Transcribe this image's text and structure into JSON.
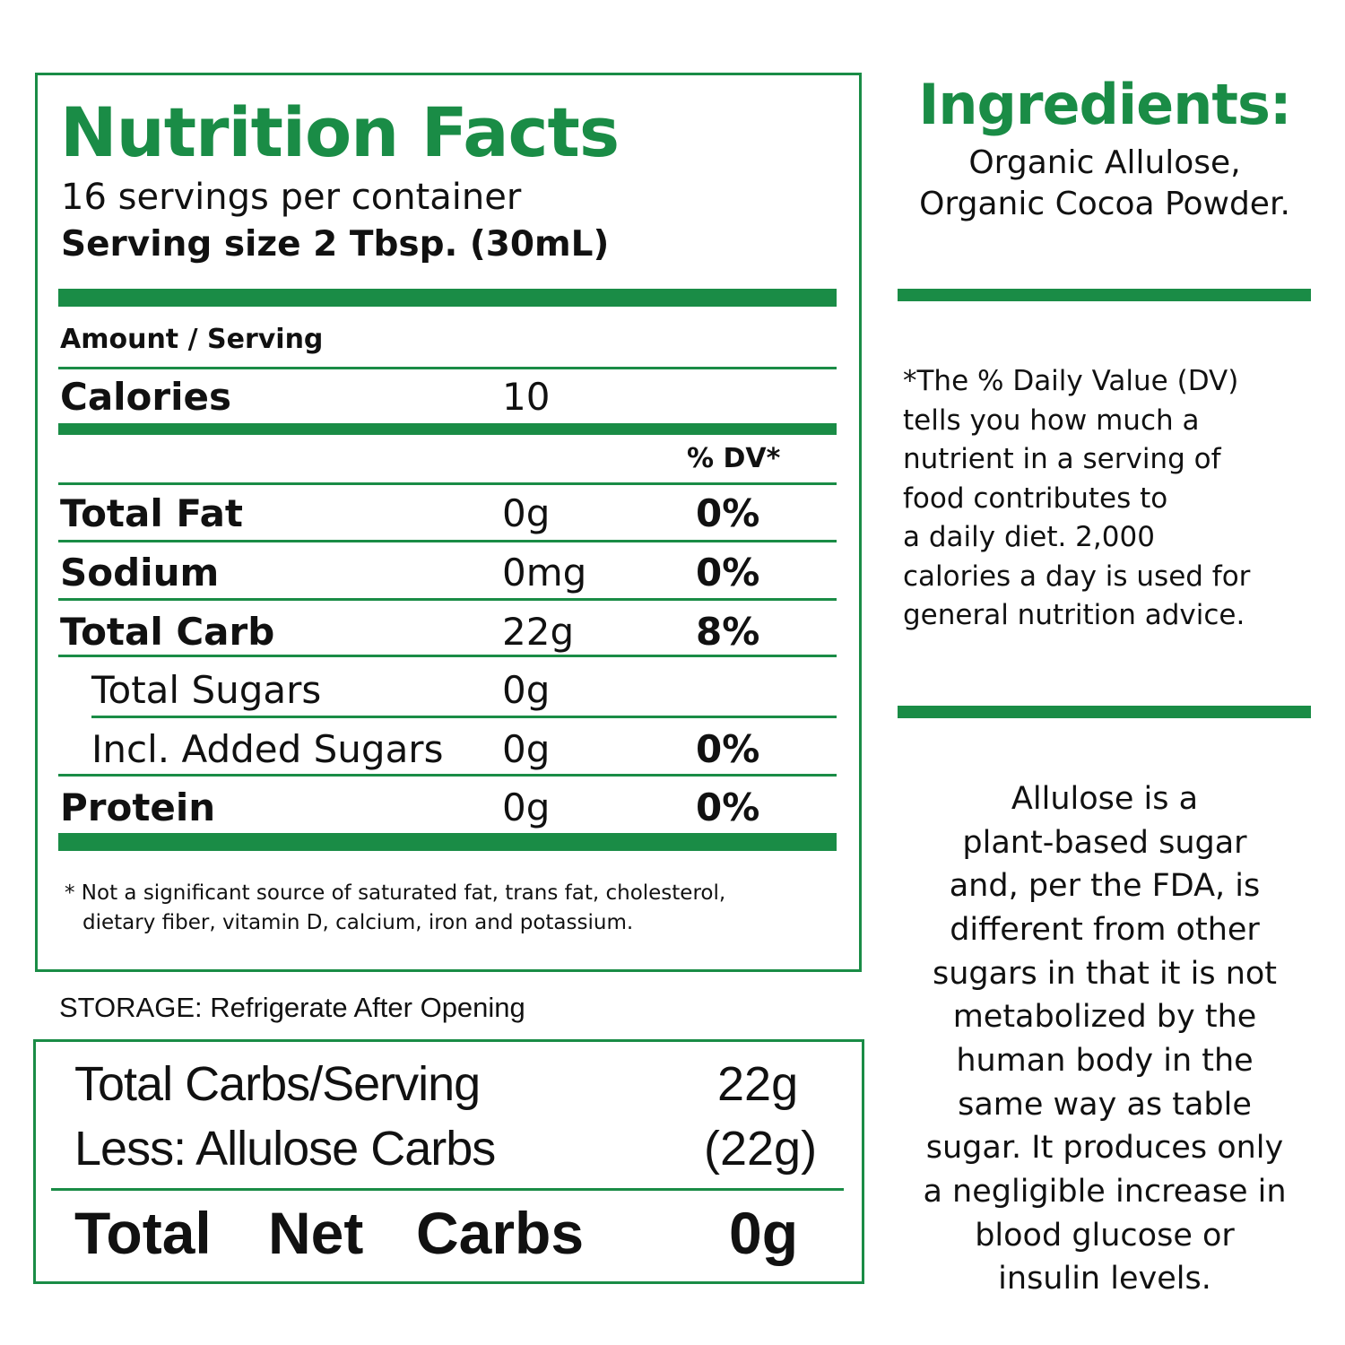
{
  "nutrition": {
    "title": "Nutrition Facts",
    "servings_per_container": "16 servings per container",
    "serving_size": "Serving size 2 Tbsp. (30mL)",
    "amount_per_serving": "Amount / Serving",
    "calories_label": "Calories",
    "calories_value": "10",
    "dv_header": "% DV*",
    "rows": [
      {
        "label": "Total Fat",
        "amount": "0g",
        "dv": "0%"
      },
      {
        "label": "Sodium",
        "amount": "0mg",
        "dv": "0%"
      },
      {
        "label": "Total Carb",
        "amount": "22g",
        "dv": "8%"
      },
      {
        "label": "Total Sugars",
        "amount": "0g",
        "dv": ""
      },
      {
        "label": "Incl. Added Sugars",
        "amount": "0g",
        "dv": "0%"
      },
      {
        "label": "Protein",
        "amount": "0g",
        "dv": "0%"
      }
    ],
    "footnote_line1": "* Not a significant source of saturated fat, trans fat, cholesterol,",
    "footnote_line2": "dietary fiber, vitamin D, calcium, iron and potassium."
  },
  "storage": "STORAGE: Refrigerate After Opening",
  "net_carbs": {
    "total_label": "Total Carbs/Serving",
    "total_value": "22g",
    "less_label": "Less: Allulose Carbs",
    "less_value": "(22g)",
    "net_label_1": "Total",
    "net_label_2": "Net",
    "net_label_3": "Carbs",
    "net_value": "0g"
  },
  "ingredients": {
    "title": "Ingredients:",
    "line1": "Organic Allulose,",
    "line2": "Organic Cocoa Powder."
  },
  "dv_note": [
    "*The % Daily Value (DV)",
    "tells you how much a",
    "nutrient in a serving of",
    "food contributes to",
    "a daily diet. 2,000",
    "calories a day is used for",
    "general nutrition advice."
  ],
  "allulose_note": [
    "Allulose is a",
    "plant-based sugar",
    "and, per the FDA, is",
    "different from other",
    "sugars in that it is not",
    "metabolized by the",
    "human body in the",
    "same way as table",
    "sugar. It produces only",
    "a negligible increase in",
    "blood glucose or",
    "insulin levels."
  ],
  "colors": {
    "accent": "#1a8c46",
    "text": "#111111"
  }
}
